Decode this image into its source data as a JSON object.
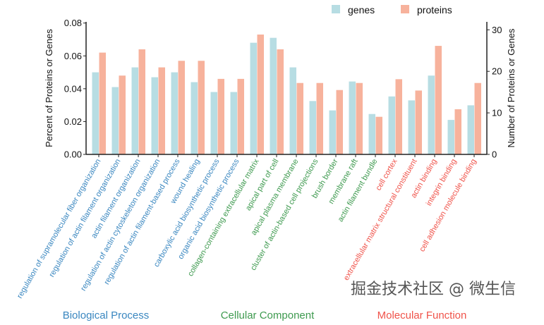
{
  "chart_data": {
    "type": "bar",
    "title": "",
    "ylabel": "Percent of Proteins or Genes",
    "ylabel_right": "Number of Proteins or Genes",
    "ylim": [
      0,
      0.08
    ],
    "ylim_right": [
      0,
      32
    ],
    "yticks": [
      "0.00",
      "0.02",
      "0.04",
      "0.06",
      "0.08"
    ],
    "yticks_right": [
      "0",
      "10",
      "20",
      "30"
    ],
    "legend_position": "top-right",
    "grid": false,
    "categories": [
      "regulation of supramolecular fiber organization",
      "regulation of actin filament organization",
      "actin filament organization",
      "regulation of actin cytoskeleton organization",
      "regulation of actin filament-based process",
      "wound healing",
      "carboxylic acid biosynthetic process",
      "organic acid biosynthetic process",
      "collagen-containing extracellular matrix",
      "apical part of cell",
      "apical plasma membrane",
      "cluster of actin-based cell projections",
      "brush border",
      "membrane raft",
      "actin filament bundle",
      "cell cortex",
      "extracellular matrix structural constituent",
      "actin binding",
      "integrin binding",
      "cell adhesion molecule binding"
    ],
    "category_groups": [
      0,
      0,
      0,
      0,
      0,
      0,
      0,
      0,
      1,
      1,
      1,
      1,
      1,
      1,
      1,
      2,
      2,
      2,
      2,
      2
    ],
    "groups": [
      {
        "name": "Biological Process",
        "color": "#3a87c0"
      },
      {
        "name": "Cellular Component",
        "color": "#3e9a4f"
      },
      {
        "name": "Molecular Function",
        "color": "#f0534a"
      }
    ],
    "series": [
      {
        "name": "genes",
        "color": "#b7dde3",
        "values": [
          0.05,
          0.041,
          0.053,
          0.047,
          0.05,
          0.044,
          0.038,
          0.038,
          0.068,
          0.071,
          0.053,
          0.0325,
          0.0268,
          0.0444,
          0.0246,
          0.0353,
          0.0329,
          0.048,
          0.021,
          0.0299
        ]
      },
      {
        "name": "proteins",
        "color": "#f7b29c",
        "values": [
          0.062,
          0.048,
          0.064,
          0.053,
          0.057,
          0.057,
          0.046,
          0.046,
          0.073,
          0.064,
          0.0435,
          0.0435,
          0.0392,
          0.0435,
          0.0229,
          0.0458,
          0.0389,
          0.0661,
          0.0275,
          0.0435
        ]
      }
    ]
  },
  "watermark": "掘金技术社区 @ 微生信"
}
